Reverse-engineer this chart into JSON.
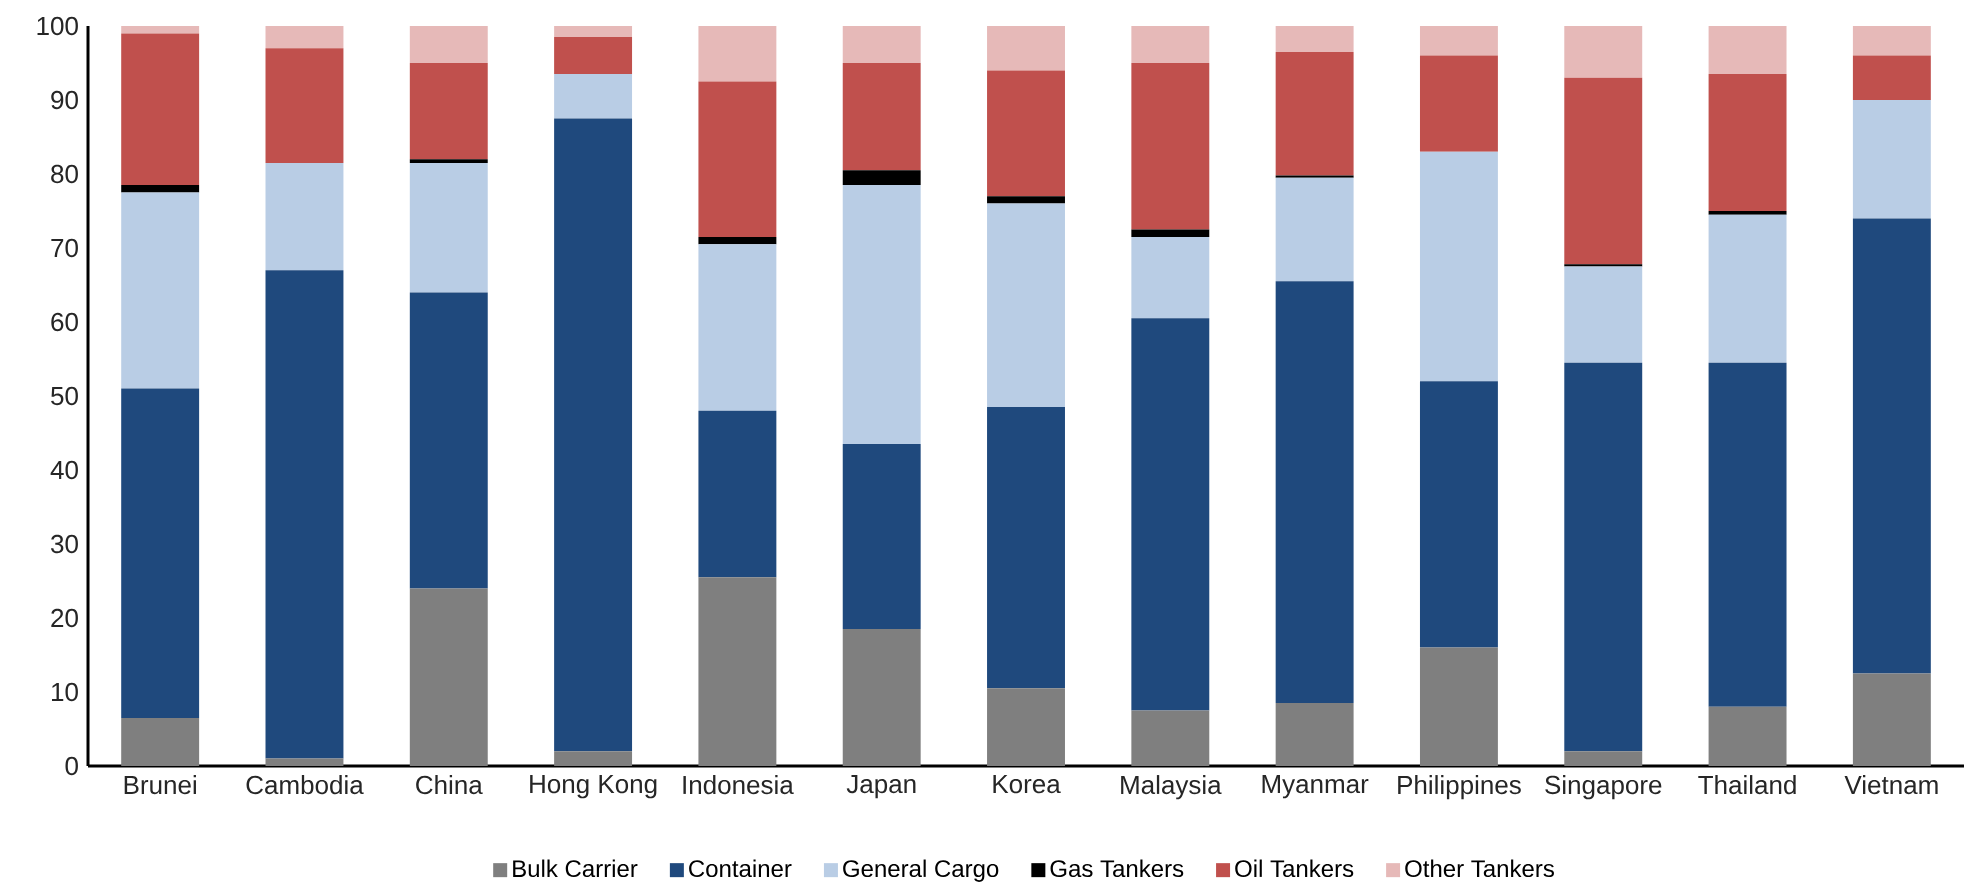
{
  "chart_data": {
    "type": "bar",
    "stacked": true,
    "categories": [
      "Brunei",
      "Cambodia",
      "China",
      "Hong Kong",
      "Indonesia",
      "Japan",
      "Korea",
      "Malaysia",
      "Myanmar",
      "Philippines",
      "Singapore",
      "Thailand",
      "Vietnam"
    ],
    "series": [
      {
        "name": "Bulk Carrier",
        "color": "#7f7f7f",
        "values": [
          6.5,
          1,
          24,
          2,
          25.5,
          18.5,
          10.5,
          7.5,
          8.5,
          16,
          2,
          8,
          12.5
        ]
      },
      {
        "name": "Container",
        "color": "#1f497d",
        "values": [
          44.5,
          66,
          40,
          85.5,
          22.5,
          25,
          38,
          53,
          57,
          36,
          52.5,
          46.5,
          61.5
        ]
      },
      {
        "name": "General Cargo",
        "color": "#b9cde5",
        "values": [
          26.5,
          14.5,
          17.5,
          6,
          22.5,
          35,
          27.5,
          11,
          14,
          31,
          13,
          20,
          16
        ]
      },
      {
        "name": "Gas Tankers",
        "color": "#000000",
        "values": [
          1,
          0,
          0.5,
          0,
          1,
          2,
          1,
          1,
          0.3,
          0,
          0.3,
          0.5,
          0
        ]
      },
      {
        "name": "Oil Tankers",
        "color": "#c0504d",
        "values": [
          20.5,
          15.5,
          13,
          5,
          21,
          14.5,
          17,
          22.5,
          16.7,
          13,
          25.2,
          18.5,
          6
        ]
      },
      {
        "name": "Other Tankers",
        "color": "#e6b9b8",
        "values": [
          1,
          3,
          5,
          1.5,
          7.5,
          5,
          6,
          5,
          3.5,
          4,
          7,
          6.5,
          4
        ]
      }
    ],
    "ylim": [
      0,
      100
    ],
    "yticks": [
      0,
      10,
      20,
      30,
      40,
      50,
      60,
      70,
      80,
      90,
      100
    ],
    "grid": false,
    "legend": "bottom"
  }
}
